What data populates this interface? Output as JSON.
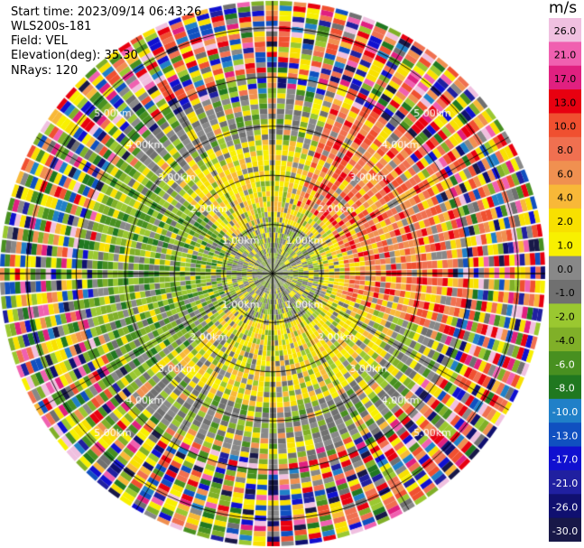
{
  "header": {
    "start_time": "Start time: 2023/09/14 06:43:26",
    "instrument": "WLS200s-181",
    "field": "Field: VEL",
    "elevation": "Elevation(deg): 35.30",
    "nrays": "NRays: 120"
  },
  "chart_data": {
    "type": "heatmap",
    "projection": "polar-ppi",
    "nrays": 120,
    "range_rings_km": [
      1.0,
      2.0,
      3.0,
      4.0,
      5.0
    ],
    "ring_labels": [
      "1.00km",
      "2.00km",
      "3.00km",
      "4.00km",
      "5.00km"
    ],
    "spokes_every_deg": 30,
    "colorbar": {
      "unit": "m/s",
      "tick_labels": [
        "26.0",
        "21.0",
        "17.0",
        "13.0",
        "10.0",
        "8.0",
        "6.0",
        "4.0",
        "2.0",
        "1.0",
        "0.0",
        "-1.0",
        "-2.0",
        "-4.0",
        "-6.0",
        "-8.0",
        "-10.0",
        "-13.0",
        "-17.0",
        "-21.0",
        "-26.0",
        "-30.0"
      ],
      "colors": [
        "#f0c0e0",
        "#f060b0",
        "#e02080",
        "#e80010",
        "#f05030",
        "#f07050",
        "#f09050",
        "#f8b838",
        "#f8e000",
        "#f8f000",
        "#888888",
        "#707070",
        "#9ac830",
        "#80b028",
        "#489020",
        "#207820",
        "#2080c8",
        "#1050c0",
        "#1010d0",
        "#2020a0",
        "#101070",
        "#181848"
      ]
    },
    "pattern": "velocity field: near-zero (gray) core ring 0-1 km; yellow (+2 to +4 m/s) annulus 1-2.5 km south/north; green (-2 to -6 m/s) to the west; orange (+6 to +10 m/s) to the northeast; noisy multicolor returns beyond ~3.5 km"
  }
}
